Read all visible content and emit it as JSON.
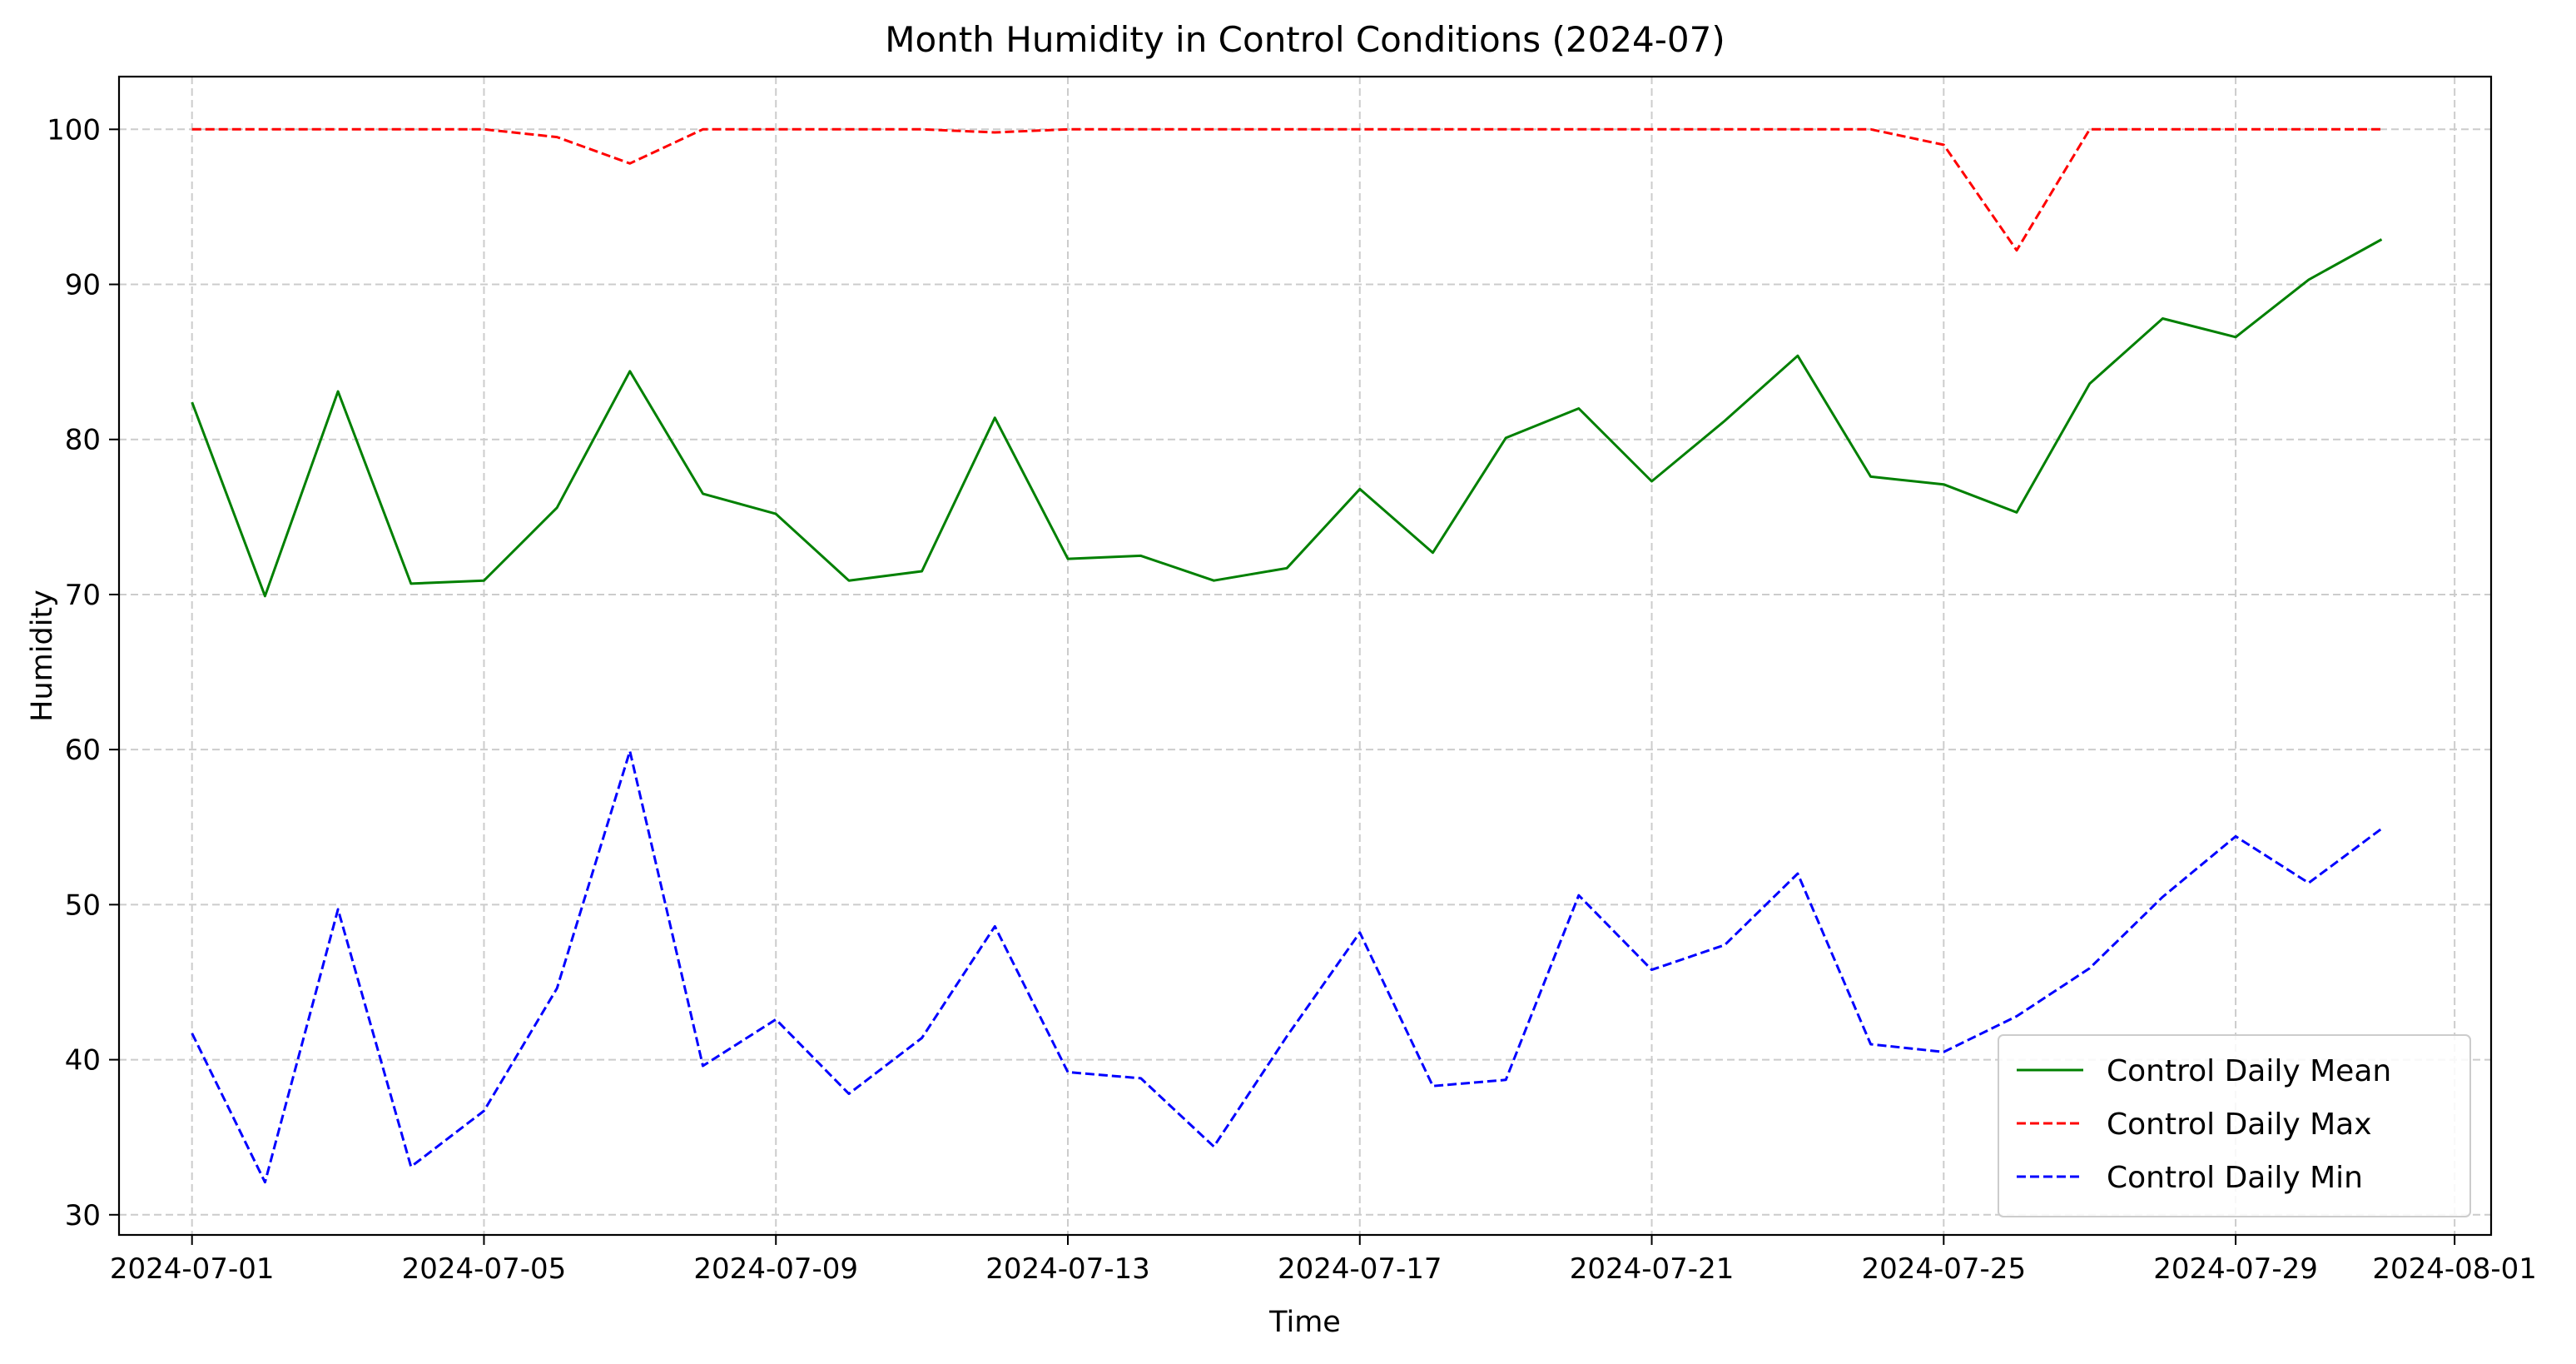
{
  "chart_data": {
    "type": "line",
    "title": "Month Humidity in Control Conditions (2024-07)",
    "xlabel": "Time",
    "ylabel": "Humidity",
    "x": [
      "2024-07-01",
      "2024-07-02",
      "2024-07-03",
      "2024-07-04",
      "2024-07-05",
      "2024-07-06",
      "2024-07-07",
      "2024-07-08",
      "2024-07-09",
      "2024-07-10",
      "2024-07-11",
      "2024-07-12",
      "2024-07-13",
      "2024-07-14",
      "2024-07-15",
      "2024-07-16",
      "2024-07-17",
      "2024-07-18",
      "2024-07-19",
      "2024-07-20",
      "2024-07-21",
      "2024-07-22",
      "2024-07-23",
      "2024-07-24",
      "2024-07-25",
      "2024-07-26",
      "2024-07-27",
      "2024-07-28",
      "2024-07-29",
      "2024-07-30",
      "2024-07-31"
    ],
    "xlim": [
      "2024-06-30T00:00",
      "2024-08-01T12:00"
    ],
    "ylim": [
      28.7,
      103.4
    ],
    "x_ticks": [
      "2024-07-01",
      "2024-07-05",
      "2024-07-09",
      "2024-07-13",
      "2024-07-17",
      "2024-07-21",
      "2024-07-25",
      "2024-07-29",
      "2024-08-01"
    ],
    "y_ticks": [
      30,
      40,
      50,
      60,
      70,
      80,
      90,
      100
    ],
    "grid": true,
    "legend_position": "lower-right",
    "series": [
      {
        "name": "Control Daily Mean",
        "color": "#008000",
        "dash": "solid",
        "values": [
          82.4,
          69.9,
          83.1,
          70.7,
          70.9,
          75.6,
          84.4,
          76.5,
          75.2,
          70.9,
          71.5,
          81.4,
          72.3,
          72.5,
          70.9,
          71.7,
          76.8,
          72.7,
          80.1,
          82.0,
          77.3,
          81.2,
          85.4,
          77.6,
          77.1,
          75.3,
          83.6,
          87.8,
          86.6,
          90.3,
          92.9
        ]
      },
      {
        "name": "Control Daily Max",
        "color": "#ff0000",
        "dash": "dashed",
        "values": [
          100,
          100,
          100,
          100,
          100,
          99.5,
          97.8,
          100,
          100,
          100,
          100,
          99.8,
          100,
          100,
          100,
          100,
          100,
          100,
          100,
          100,
          100,
          100,
          100,
          100,
          99.0,
          92.2,
          100,
          100,
          100,
          100,
          100
        ]
      },
      {
        "name": "Control Daily Min",
        "color": "#0000ff",
        "dash": "dashed",
        "values": [
          41.7,
          32.1,
          49.7,
          33.1,
          36.7,
          44.6,
          59.9,
          39.6,
          42.6,
          37.8,
          41.4,
          48.6,
          39.2,
          38.8,
          34.4,
          41.5,
          48.2,
          38.3,
          38.7,
          50.6,
          45.8,
          47.4,
          52.0,
          41.0,
          40.5,
          42.8,
          45.9,
          50.5,
          54.4,
          51.4,
          54.9
        ]
      }
    ]
  }
}
